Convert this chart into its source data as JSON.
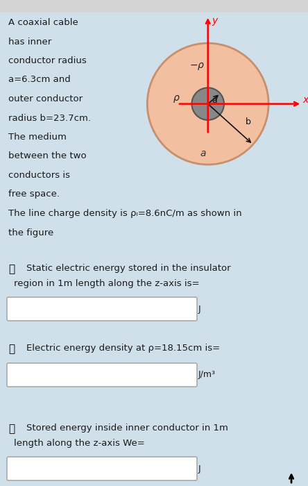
{
  "bg_color": "#cfe0eb",
  "fig_width": 4.44,
  "fig_height": 7.0,
  "top_bar_color": "#d4d4d4",
  "header_text_lines": [
    "A coaxial cable",
    "has inner",
    "conductor radius",
    "a=6.3cm and",
    "outer conductor",
    "radius b=23.7cm.",
    "The medium",
    "between the two",
    "conductors is",
    "free space."
  ],
  "charge_line": "The line charge density is ρₗ=8.6nC/m as shown in",
  "charge_line2": "the figure",
  "diagram": {
    "outer_color": "#f2bfa0",
    "inner_color": "#888888",
    "outer_border_color": "#c8906a",
    "inner_border_color": "#555555",
    "bg_color": "#cfe0eb"
  },
  "questions": [
    {
      "icon": "👉",
      "label1": "Static electric energy stored in the insulator",
      "label2": "region in 1m length along the z-axis is=",
      "label3": "",
      "unit": "J"
    },
    {
      "icon": "👉",
      "label1": "Electric energy density at ρ=18.15cm is=",
      "label2": "",
      "label3": "",
      "unit": "J/m³"
    },
    {
      "icon": "👉",
      "label1": "Stored energy inside inner conductor in 1m",
      "label2": "length along the z-axis We=",
      "label3": "",
      "unit": "J"
    }
  ],
  "text_color": "#1a1a1a",
  "box_color": "#ffffff",
  "box_border": "#aaaaaa"
}
